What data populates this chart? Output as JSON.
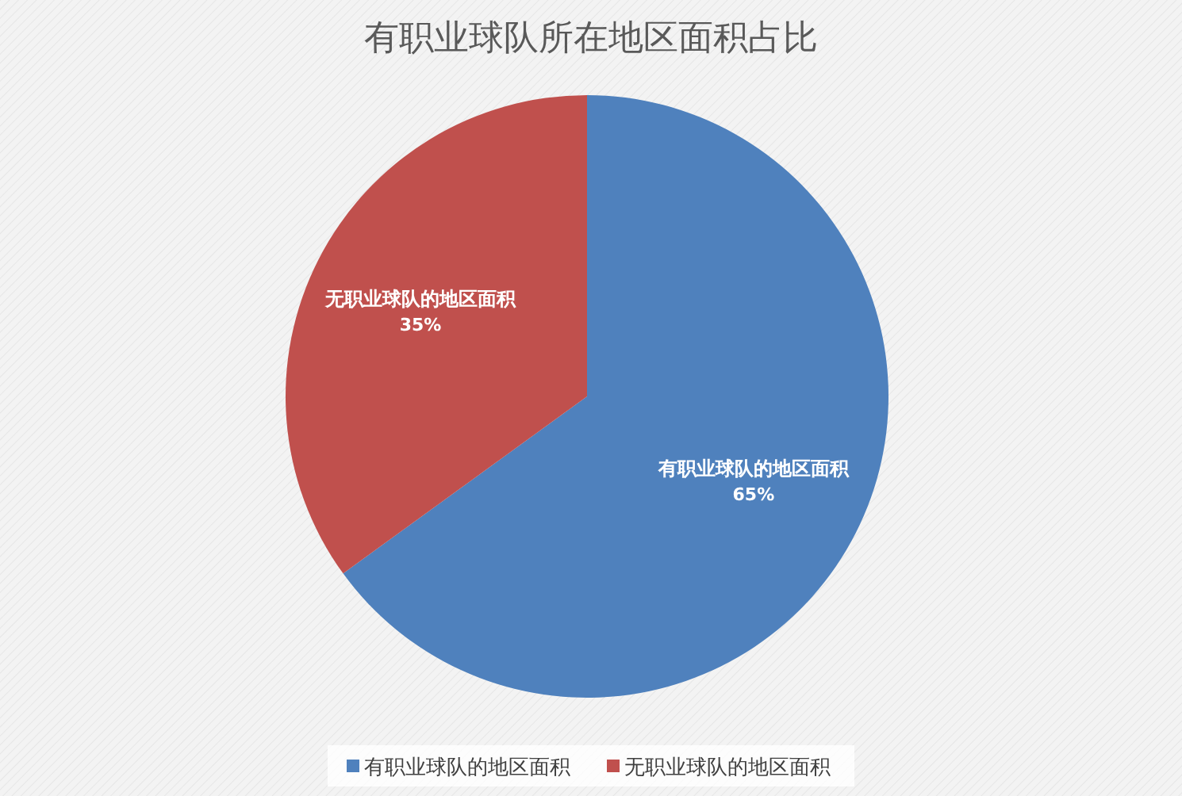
{
  "chart_data": {
    "type": "pie",
    "title": "有职业球队所在地区面积占比",
    "categories": [
      "有职业球队的地区面积",
      "无职业球队的地区面积"
    ],
    "values": [
      65,
      35
    ],
    "value_labels": [
      "65%",
      "35%"
    ],
    "colors": [
      "#4f81bd",
      "#c0504d"
    ],
    "legend": "bottom"
  }
}
